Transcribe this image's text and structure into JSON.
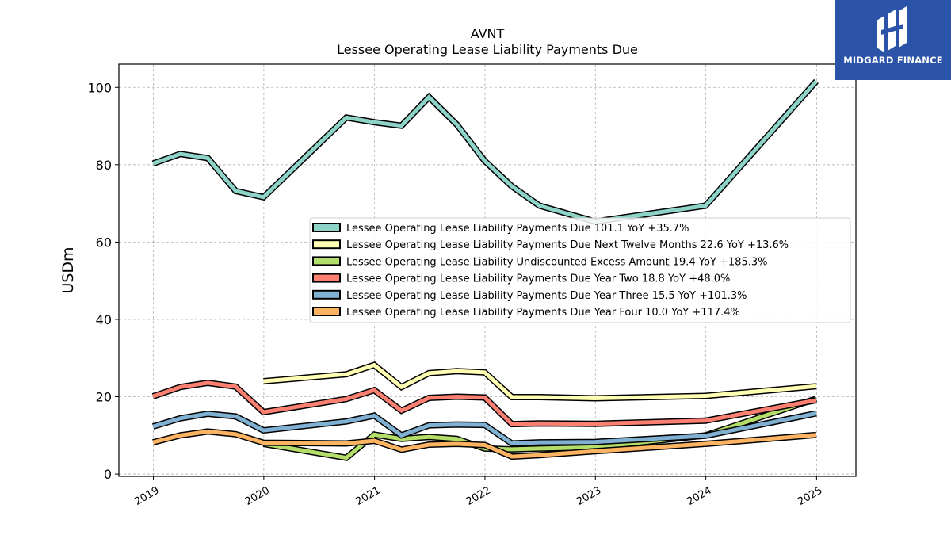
{
  "chart_data": {
    "type": "line",
    "title": "AVNT",
    "subtitle": "Lessee Operating Lease Liability Payments Due",
    "xlabel": "",
    "ylabel": "USDm",
    "ylim": [
      -0.6,
      106
    ],
    "xlim": [
      "2018-09-09",
      "2025-05-11"
    ],
    "yticks": [
      0,
      20,
      40,
      60,
      80,
      100
    ],
    "xticks": [
      "2019",
      "2020",
      "2021",
      "2022",
      "2023",
      "2024",
      "2025"
    ],
    "grid": true,
    "legend_position": "center-right",
    "series": [
      {
        "name": "Lessee Operating Lease Liability Payments Due",
        "legend_label": "Lessee Operating Lease Liability Payments Due  101.1 YoY +35.7%",
        "color": "#8dd3c7",
        "points": [
          [
            "2018-12-31",
            80.3
          ],
          [
            "2019-03-31",
            82.8
          ],
          [
            "2019-06-30",
            81.7
          ],
          [
            "2019-09-30",
            73.2
          ],
          [
            "2019-12-31",
            71.6
          ],
          [
            "2020-09-30",
            92.2
          ],
          [
            "2020-12-31",
            91.0
          ],
          [
            "2021-03-31",
            90.1
          ],
          [
            "2021-06-30",
            97.5
          ],
          [
            "2021-09-30",
            90.4
          ],
          [
            "2021-12-31",
            81.0
          ],
          [
            "2022-03-31",
            74.4
          ],
          [
            "2022-06-30",
            69.4
          ],
          [
            "2022-12-31",
            65.3
          ],
          [
            "2023-12-31",
            69.4
          ],
          [
            "2024-12-31",
            101.6
          ]
        ]
      },
      {
        "name": "Lessee Operating Lease Liability Payments Due Next Twelve Months",
        "legend_label": "Lessee Operating Lease Liability Payments Due Next Twelve Months  22.6 YoY +13.6%",
        "color": "#ffffb3",
        "points": [
          [
            "2019-12-31",
            24.0
          ],
          [
            "2020-09-30",
            25.8
          ],
          [
            "2020-12-31",
            28.2
          ],
          [
            "2021-03-31",
            22.5
          ],
          [
            "2021-06-30",
            26.1
          ],
          [
            "2021-09-30",
            26.6
          ],
          [
            "2021-12-31",
            26.3
          ],
          [
            "2022-03-31",
            19.9
          ],
          [
            "2022-06-30",
            19.9
          ],
          [
            "2022-12-31",
            19.6
          ],
          [
            "2023-12-31",
            20.2
          ],
          [
            "2024-12-31",
            22.7
          ]
        ]
      },
      {
        "name": "Lessee Operating Lease Liability Undiscounted Excess Amount",
        "legend_label": "Lessee Operating Lease Liability Undiscounted Excess Amount  19.4 YoY +185.3%",
        "color": "#b3de69",
        "points": [
          [
            "2019-12-31",
            7.8
          ],
          [
            "2020-09-30",
            4.2
          ],
          [
            "2020-12-31",
            10.2
          ],
          [
            "2021-03-31",
            9.1
          ],
          [
            "2021-06-30",
            9.6
          ],
          [
            "2021-09-30",
            9.1
          ],
          [
            "2021-12-31",
            6.6
          ],
          [
            "2022-03-31",
            6.4
          ],
          [
            "2022-06-30",
            6.6
          ],
          [
            "2022-12-31",
            6.9
          ],
          [
            "2023-12-31",
            10.0
          ],
          [
            "2024-12-31",
            19.5
          ]
        ]
      },
      {
        "name": "Lessee Operating Lease Liability Payments Due Year Two",
        "legend_label": "Lessee Operating Lease Liability Payments Due Year Two  18.8 YoY +48.0%",
        "color": "#fb8072",
        "points": [
          [
            "2018-12-31",
            20.1
          ],
          [
            "2019-03-31",
            22.5
          ],
          [
            "2019-06-30",
            23.6
          ],
          [
            "2019-09-30",
            22.6
          ],
          [
            "2019-12-31",
            16.0
          ],
          [
            "2020-09-30",
            19.4
          ],
          [
            "2020-12-31",
            21.7
          ],
          [
            "2021-03-31",
            16.4
          ],
          [
            "2021-06-30",
            19.7
          ],
          [
            "2021-09-30",
            20.0
          ],
          [
            "2021-12-31",
            19.8
          ],
          [
            "2022-03-31",
            12.9
          ],
          [
            "2022-06-30",
            13.1
          ],
          [
            "2022-12-31",
            13.0
          ],
          [
            "2023-12-31",
            13.8
          ],
          [
            "2024-12-31",
            19.1
          ]
        ]
      },
      {
        "name": "Lessee Operating Lease Liability Payments Due Year Three",
        "legend_label": "Lessee Operating Lease Liability Payments Due Year Three  15.5 YoY +101.3%",
        "color": "#80b1d3",
        "points": [
          [
            "2018-12-31",
            12.3
          ],
          [
            "2019-03-31",
            14.4
          ],
          [
            "2019-06-30",
            15.6
          ],
          [
            "2019-09-30",
            14.9
          ],
          [
            "2019-12-31",
            11.3
          ],
          [
            "2020-09-30",
            13.6
          ],
          [
            "2020-12-31",
            15.1
          ],
          [
            "2021-03-31",
            10.0
          ],
          [
            "2021-06-30",
            12.6
          ],
          [
            "2021-09-30",
            12.8
          ],
          [
            "2021-12-31",
            12.7
          ],
          [
            "2022-03-31",
            7.9
          ],
          [
            "2022-06-30",
            8.2
          ],
          [
            "2022-12-31",
            8.3
          ],
          [
            "2023-12-31",
            9.9
          ],
          [
            "2024-12-31",
            15.7
          ]
        ]
      },
      {
        "name": "Lessee Operating Lease Liability Payments Due Year Four",
        "legend_label": "Lessee Operating Lease Liability Payments Due Year Four  10.0 YoY +117.4%",
        "color": "#fdb462",
        "points": [
          [
            "2018-12-31",
            8.2
          ],
          [
            "2019-03-31",
            10.0
          ],
          [
            "2019-06-30",
            11.0
          ],
          [
            "2019-09-30",
            10.3
          ],
          [
            "2019-12-31",
            8.1
          ],
          [
            "2020-09-30",
            7.9
          ],
          [
            "2020-12-31",
            8.6
          ],
          [
            "2021-03-31",
            6.3
          ],
          [
            "2021-06-30",
            7.6
          ],
          [
            "2021-09-30",
            7.8
          ],
          [
            "2021-12-31",
            7.5
          ],
          [
            "2022-03-31",
            4.5
          ],
          [
            "2022-06-30",
            4.9
          ],
          [
            "2022-12-31",
            5.9
          ],
          [
            "2023-12-31",
            7.8
          ],
          [
            "2024-12-31",
            10.1
          ]
        ]
      }
    ]
  },
  "logo": {
    "text": "MIDGARD FINANCE",
    "background": "#2b54a8"
  }
}
